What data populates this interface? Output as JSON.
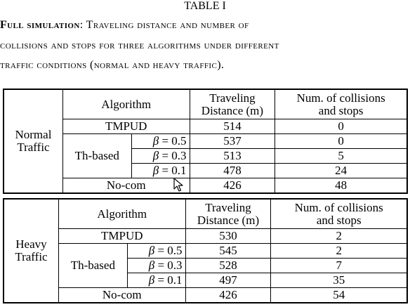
{
  "table_label": "TABLE I",
  "caption": {
    "lead": "Full simulation",
    "rest_line1": ": Traveling distance and number of",
    "line2": "collisions and stops for three algorithms under different",
    "line3": "traffic conditions (normal and heavy traffic)."
  },
  "headers": {
    "algorithm": "Algorithm",
    "distance_l1": "Traveling",
    "distance_l2": "Distance (m)",
    "collisions_l1": "Num. of collisions",
    "collisions_l2": "and stops"
  },
  "normal": {
    "condition_l1": "Normal",
    "condition_l2": "Traffic",
    "rows": {
      "tmpud": {
        "name": "TMPUD",
        "distance": "514",
        "collisions": "0"
      },
      "th_group": "Th-based",
      "th1": {
        "beta_sym": "β",
        "beta_val": " = 0.5",
        "distance": "537",
        "collisions": "0"
      },
      "th2": {
        "beta_sym": "β",
        "beta_val": " = 0.3",
        "distance": "513",
        "collisions": "5"
      },
      "th3": {
        "beta_sym": "β",
        "beta_val": " = 0.1",
        "distance": "478",
        "collisions": "24"
      },
      "nocom": {
        "name": "No-com",
        "distance": "426",
        "collisions": "48"
      }
    }
  },
  "heavy": {
    "condition_l1": "Heavy",
    "condition_l2": "Traffic",
    "rows": {
      "tmpud": {
        "name": "TMPUD",
        "distance": "530",
        "collisions": "2"
      },
      "th_group": "Th-based",
      "th1": {
        "beta_sym": "β",
        "beta_val": " = 0.5",
        "distance": "545",
        "collisions": "2"
      },
      "th2": {
        "beta_sym": "β",
        "beta_val": " = 0.3",
        "distance": "528",
        "collisions": "7"
      },
      "th3": {
        "beta_sym": "β",
        "beta_val": " = 0.1",
        "distance": "497",
        "collisions": "35"
      },
      "nocom": {
        "name": "No-com",
        "distance": "426",
        "collisions": "54"
      }
    }
  },
  "cursor_icon": "mouse-pointer-arrow"
}
